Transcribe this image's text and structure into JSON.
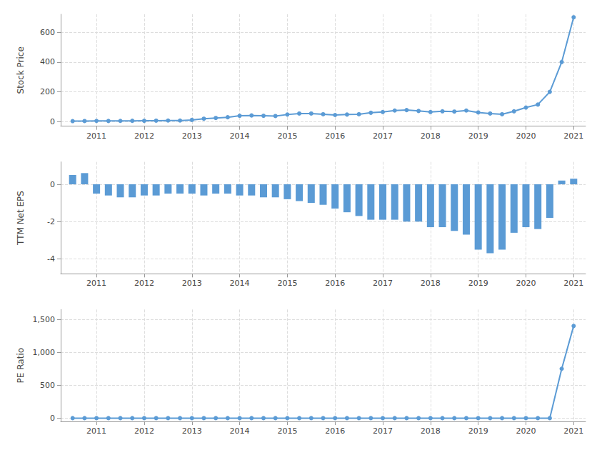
{
  "chart_data": [
    {
      "type": "line",
      "ylabel": "Stock Price",
      "color": "#5b9bd5",
      "marker": "circle",
      "grid": true,
      "x": [
        2010.5,
        2010.75,
        2011.0,
        2011.25,
        2011.5,
        2011.75,
        2012.0,
        2012.25,
        2012.5,
        2012.75,
        2013.0,
        2013.25,
        2013.5,
        2013.75,
        2014.0,
        2014.25,
        2014.5,
        2014.75,
        2015.0,
        2015.25,
        2015.5,
        2015.75,
        2016.0,
        2016.25,
        2016.5,
        2016.75,
        2017.0,
        2017.25,
        2017.5,
        2017.75,
        2018.0,
        2018.25,
        2018.5,
        2018.75,
        2019.0,
        2019.25,
        2019.5,
        2019.75,
        2020.0,
        2020.25,
        2020.5,
        2020.75,
        2021.0
      ],
      "values": [
        4.0,
        4.5,
        5.5,
        5.0,
        5.5,
        6.0,
        6.5,
        7.0,
        8.0,
        8.0,
        12.0,
        20.0,
        25.0,
        30.0,
        40.0,
        42.0,
        40.0,
        38.0,
        48.0,
        55.0,
        55.0,
        50.0,
        45.0,
        48.0,
        50.0,
        60.0,
        65.0,
        75.0,
        78.0,
        72.0,
        65.0,
        70.0,
        68.0,
        75.0,
        62.0,
        55.0,
        50.0,
        70.0,
        95.0,
        115.0,
        200.0,
        400.0,
        700.0
      ],
      "xlim": [
        2010.25,
        2021.25
      ],
      "xticks": [
        2011,
        2012,
        2013,
        2014,
        2015,
        2016,
        2017,
        2018,
        2019,
        2020,
        2021
      ],
      "ylim": [
        -30,
        720
      ],
      "yticks": [
        0,
        200,
        400,
        600
      ]
    },
    {
      "type": "bar",
      "ylabel": "TTM Net EPS",
      "color": "#5b9bd5",
      "grid": true,
      "x": [
        2010.5,
        2010.75,
        2011.0,
        2011.25,
        2011.5,
        2011.75,
        2012.0,
        2012.25,
        2012.5,
        2012.75,
        2013.0,
        2013.25,
        2013.5,
        2013.75,
        2014.0,
        2014.25,
        2014.5,
        2014.75,
        2015.0,
        2015.25,
        2015.5,
        2015.75,
        2016.0,
        2016.25,
        2016.5,
        2016.75,
        2017.0,
        2017.25,
        2017.5,
        2017.75,
        2018.0,
        2018.25,
        2018.5,
        2018.75,
        2019.0,
        2019.25,
        2019.5,
        2019.75,
        2020.0,
        2020.25,
        2020.5,
        2020.75,
        2021.0
      ],
      "values": [
        0.5,
        0.6,
        -0.5,
        -0.6,
        -0.7,
        -0.7,
        -0.6,
        -0.6,
        -0.5,
        -0.5,
        -0.5,
        -0.6,
        -0.5,
        -0.5,
        -0.6,
        -0.6,
        -0.7,
        -0.7,
        -0.8,
        -0.9,
        -1.0,
        -1.1,
        -1.3,
        -1.5,
        -1.7,
        -1.9,
        -1.9,
        -1.9,
        -2.0,
        -2.0,
        -2.3,
        -2.3,
        -2.5,
        -2.7,
        -3.5,
        -3.7,
        -3.5,
        -2.6,
        -2.3,
        -2.4,
        -1.8,
        0.2,
        0.3
      ],
      "xlim": [
        2010.25,
        2021.25
      ],
      "xticks": [
        2011,
        2012,
        2013,
        2014,
        2015,
        2016,
        2017,
        2018,
        2019,
        2020,
        2021
      ],
      "ylim": [
        -4.8,
        1.2
      ],
      "yticks": [
        0,
        -2,
        -4
      ]
    },
    {
      "type": "line",
      "ylabel": "PE Ratio",
      "color": "#5b9bd5",
      "marker": "circle",
      "grid": true,
      "x": [
        2010.5,
        2010.75,
        2011.0,
        2011.25,
        2011.5,
        2011.75,
        2012.0,
        2012.25,
        2012.5,
        2012.75,
        2013.0,
        2013.25,
        2013.5,
        2013.75,
        2014.0,
        2014.25,
        2014.5,
        2014.75,
        2015.0,
        2015.25,
        2015.5,
        2015.75,
        2016.0,
        2016.25,
        2016.5,
        2016.75,
        2017.0,
        2017.25,
        2017.5,
        2017.75,
        2018.0,
        2018.25,
        2018.5,
        2018.75,
        2019.0,
        2019.25,
        2019.5,
        2019.75,
        2020.0,
        2020.25,
        2020.5,
        2020.75,
        2021.0
      ],
      "values": [
        0,
        0,
        0,
        0,
        0,
        0,
        0,
        0,
        0,
        0,
        0,
        0,
        0,
        0,
        0,
        0,
        0,
        0,
        0,
        0,
        0,
        0,
        0,
        0,
        0,
        0,
        0,
        0,
        0,
        0,
        0,
        0,
        0,
        0,
        0,
        0,
        0,
        0,
        0,
        0,
        0,
        750.0,
        1400.0
      ],
      "xlim": [
        2010.25,
        2021.25
      ],
      "xticks": [
        2011,
        2012,
        2013,
        2014,
        2015,
        2016,
        2017,
        2018,
        2019,
        2020,
        2021
      ],
      "ylim": [
        -50,
        1650
      ],
      "yticks": [
        0,
        500,
        {
          "value": 1000,
          "label": "1,000"
        },
        {
          "value": 1500,
          "label": "1,500"
        }
      ]
    }
  ]
}
